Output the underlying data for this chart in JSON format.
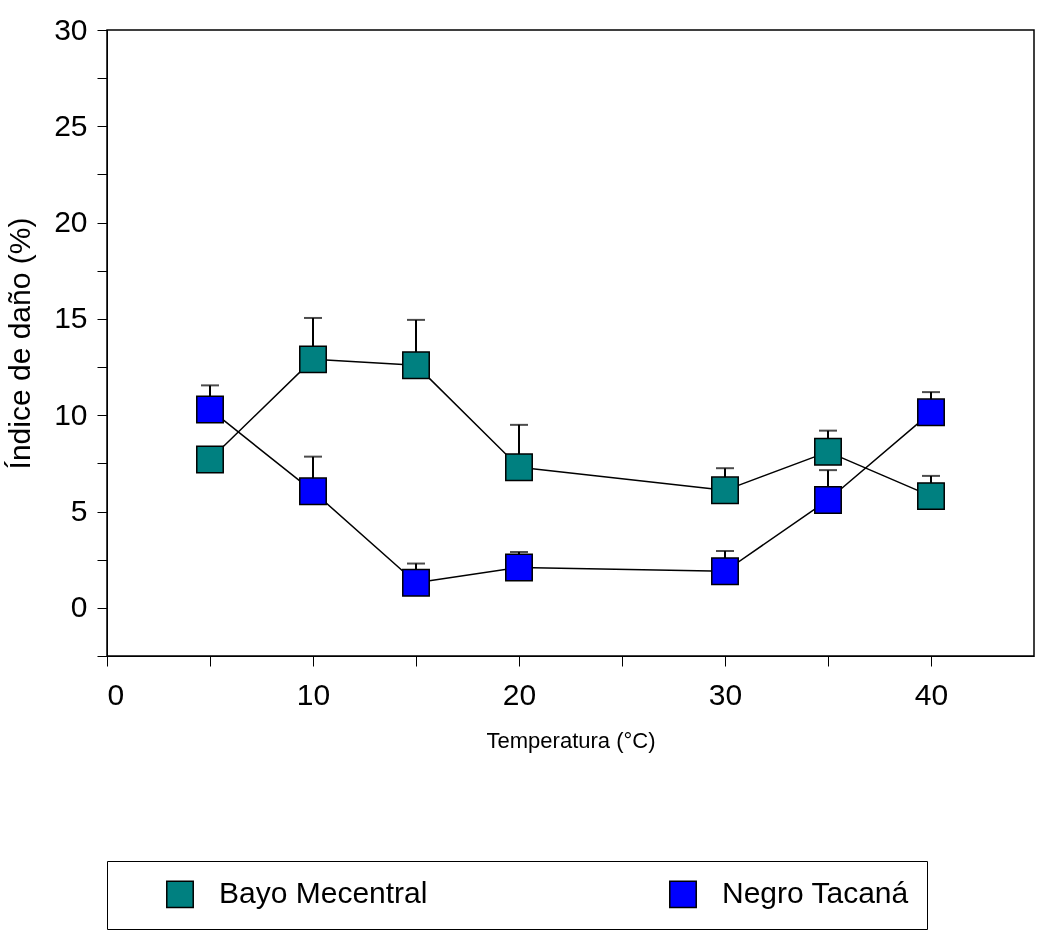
{
  "chart_data": {
    "type": "line",
    "xlabel": "Temperatura (°C)",
    "ylabel": "Índice de daño (%)",
    "x": [
      5,
      10,
      15,
      20,
      30,
      35,
      40
    ],
    "series": [
      {
        "name": "Bayo Mecentral",
        "color": "#008080",
        "values": [
          7.7,
          12.9,
          12.6,
          7.3,
          6.1,
          8.1,
          5.8
        ],
        "errors": [
          null,
          [
            12.9,
            15.05
          ],
          [
            12.6,
            14.95
          ],
          [
            7.3,
            9.5
          ],
          [
            6.1,
            7.25
          ],
          [
            8.1,
            9.2
          ],
          [
            5.8,
            6.85
          ]
        ]
      },
      {
        "name": "Negro Tacaná",
        "color": "#0000ff",
        "values": [
          10.3,
          6.05,
          1.3,
          2.1,
          1.9,
          5.6,
          10.15
        ],
        "errors": [
          [
            10.3,
            11.55
          ],
          [
            6.05,
            7.85
          ],
          [
            1.3,
            2.3
          ],
          [
            2.1,
            2.9
          ],
          [
            1.9,
            2.95
          ],
          [
            5.6,
            7.15
          ],
          [
            10.15,
            11.2
          ]
        ]
      }
    ],
    "xlim": [
      0,
      45
    ],
    "xticks": [
      0,
      {
        "value": 5,
        "label": null
      },
      10,
      {
        "value": 15,
        "label": null
      },
      20,
      {
        "value": 25,
        "label": null
      },
      30,
      {
        "value": 35,
        "label": null
      },
      40
    ],
    "ylim": [
      -2.5,
      30
    ],
    "yticks": [
      {
        "value": -2.5,
        "label": null
      },
      0,
      {
        "value": 2.5,
        "label": null
      },
      5,
      {
        "value": 7.5,
        "label": null
      },
      10,
      {
        "value": 12.5,
        "label": null
      },
      15,
      {
        "value": 17.5,
        "label": null
      },
      20,
      {
        "value": 22.5,
        "label": null
      },
      25,
      {
        "value": 27.5,
        "label": null
      },
      30
    ],
    "grid": false,
    "legend": "bottom",
    "marker": "square",
    "line_style": "solid"
  }
}
